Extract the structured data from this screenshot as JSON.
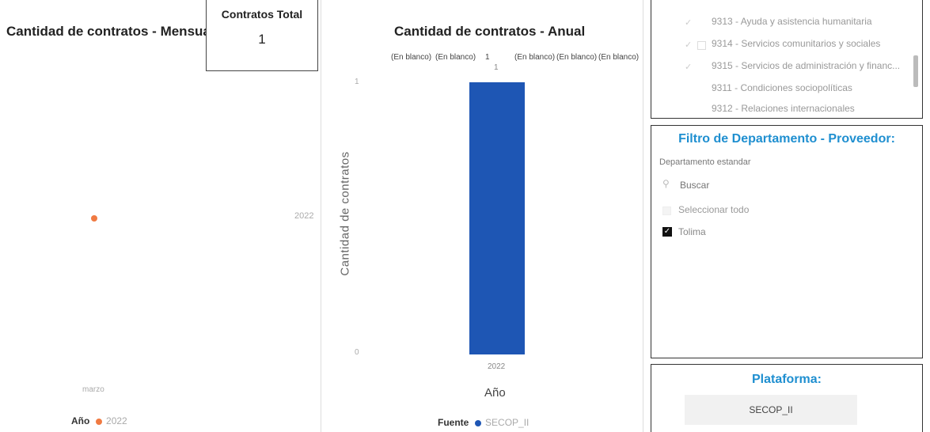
{
  "monthly_chart": {
    "title": "Cantidad de contratos - Mensual",
    "x_tick": "marzo",
    "y_tick": "2022",
    "legend_name": "Año",
    "legend_item": "2022",
    "series_color": "#f07a42"
  },
  "kpi": {
    "title": "Contratos Total",
    "value": "1"
  },
  "annual_chart": {
    "title": "Cantidad de contratos - Anual",
    "data_labels": [
      "(En blanco)",
      "(En blanco)",
      "1",
      "(En blanco)",
      "(En blanco)",
      "(En blanco)"
    ],
    "bar_label": "1",
    "y_axis_title": "Cantidad de contratos",
    "y_ticks": [
      "1",
      "0"
    ],
    "x_tick": "2022",
    "x_axis_title": "Año",
    "legend_name": "Fuente",
    "legend_item": "SECOP_II",
    "bar_color": "#1e56b4"
  },
  "chart_data": {
    "type": "bar",
    "title": "Cantidad de contratos - Anual",
    "categories": [
      "2022"
    ],
    "series": [
      {
        "name": "SECOP_II",
        "values": [
          1
        ]
      }
    ],
    "xlabel": "Año",
    "ylabel": "Cantidad de contratos",
    "ylim": [
      0,
      1
    ],
    "legend": "bottom",
    "grid": false
  },
  "slicer_top": {
    "items": [
      "9313 - Ayuda y asistencia humanitaria",
      "9314 - Servicios comunitarios y sociales",
      "9315 - Servicios de administración y financ...",
      "9311 - Condiciones sociopolíticas",
      "9312 - Relaciones internacionales"
    ]
  },
  "dept_filter": {
    "title": "Filtro de Departamento - Proveedor:",
    "field_label": "Departamento estandar",
    "search_placeholder": "Buscar",
    "select_all": "Seleccionar todo",
    "items": [
      {
        "label": "Tolima",
        "checked": true
      }
    ]
  },
  "platform": {
    "title": "Plataforma:",
    "option": "SECOP_II"
  }
}
